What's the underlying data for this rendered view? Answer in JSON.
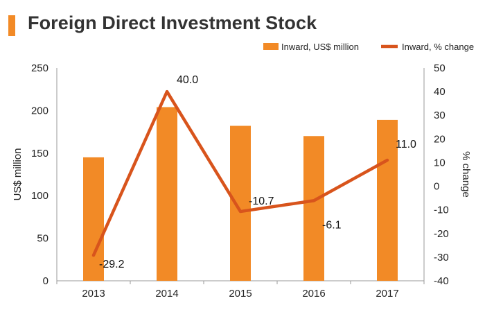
{
  "chart_data": {
    "type": "bar+line",
    "title": "Foreign Direct Investment Stock",
    "categories": [
      "2013",
      "2014",
      "2015",
      "2016",
      "2017"
    ],
    "series": [
      {
        "name": "Inward, US$ million",
        "kind": "bar",
        "axis": "left",
        "values": [
          145,
          204,
          182,
          170,
          189
        ]
      },
      {
        "name": "Inward, % change",
        "kind": "line",
        "axis": "right",
        "values": [
          -29.2,
          40.0,
          -10.7,
          -6.1,
          11.0
        ],
        "labels": [
          "-29.2",
          "40.0",
          "-10.7",
          "-6.1",
          "11.0"
        ]
      }
    ],
    "ylabel": "US$ million",
    "y2label": "% change",
    "ylim": [
      0,
      250
    ],
    "y2lim": [
      -40,
      50
    ],
    "yticks": [
      "0",
      "50",
      "100",
      "150",
      "200",
      "250"
    ],
    "y2ticks": [
      "-40",
      "-30",
      "-20",
      "-10",
      "0",
      "10",
      "20",
      "30",
      "40",
      "50"
    ],
    "legend_position": "top-right",
    "colors": {
      "bar": "#f28a26",
      "line": "#d8541c",
      "accent": "#f28a26"
    }
  }
}
